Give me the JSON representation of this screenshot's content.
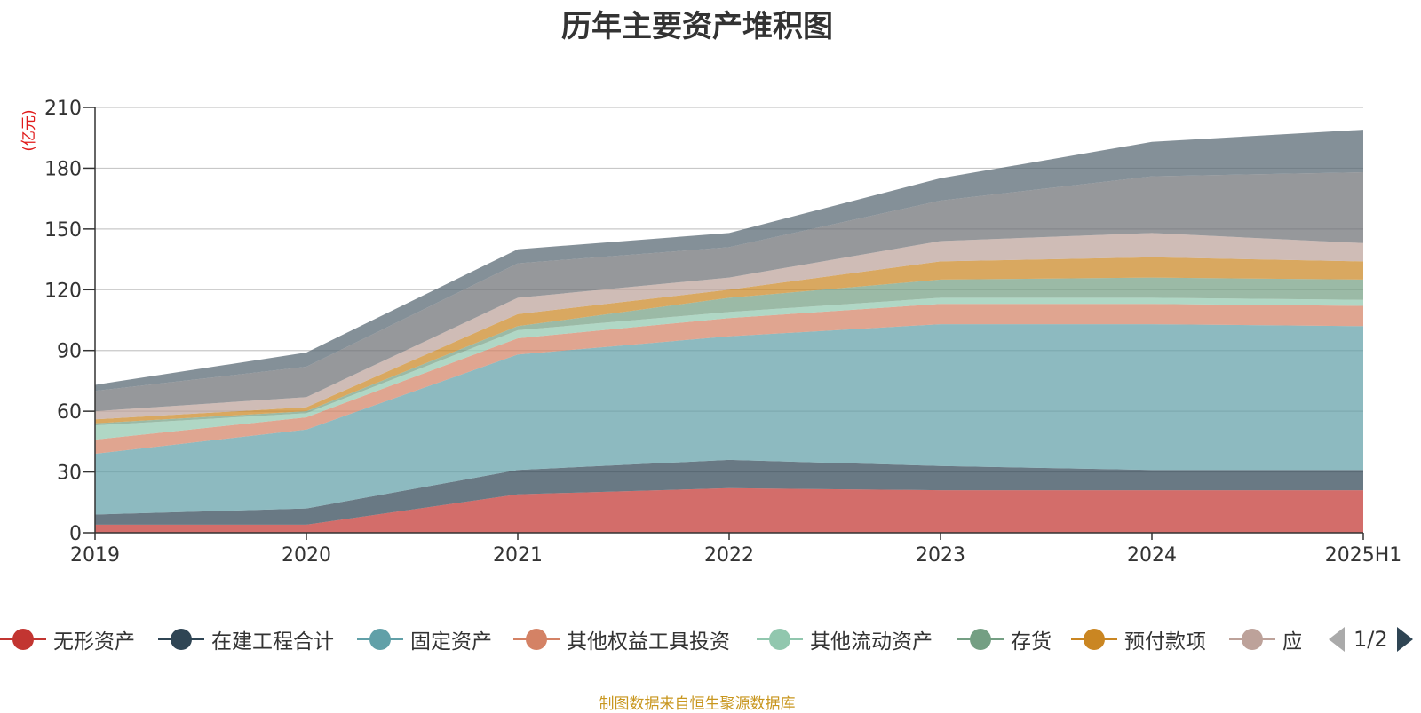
{
  "chart_data": {
    "type": "area",
    "stacked": true,
    "title": "历年主要资产堆积图",
    "unit_label": "(亿元)",
    "source_note": "制图数据来自恒生聚源数据库",
    "categories": [
      "2019",
      "2020",
      "2021",
      "2022",
      "2023",
      "2024",
      "2025H1"
    ],
    "ylim": [
      0,
      210
    ],
    "yticks": [
      0,
      30,
      60,
      90,
      120,
      150,
      180,
      210
    ],
    "grid": true,
    "legend_position": "bottom",
    "legend_page": "1/2",
    "series": [
      {
        "name": "无形资产",
        "color": "#c23531",
        "values": [
          4,
          4,
          19,
          22,
          21,
          21,
          21
        ]
      },
      {
        "name": "在建工程合计",
        "color": "#2f4554",
        "values": [
          5,
          8,
          12,
          14,
          12,
          10,
          10
        ]
      },
      {
        "name": "固定资产",
        "color": "#61a0a8",
        "values": [
          30,
          39,
          57,
          61,
          70,
          72,
          71
        ]
      },
      {
        "name": "其他权益工具投资",
        "color": "#d48265",
        "values": [
          7,
          6,
          8,
          9,
          10,
          10,
          10
        ]
      },
      {
        "name": "其他流动资产",
        "color": "#91c7ae",
        "values": [
          7,
          2,
          4,
          3,
          3,
          3,
          3
        ]
      },
      {
        "name": "存货",
        "color": "#749f83",
        "values": [
          1,
          1,
          2,
          7,
          9,
          10,
          10
        ]
      },
      {
        "name": "预付款项",
        "color": "#ca8622",
        "values": [
          2,
          2,
          6,
          4,
          9,
          10,
          9
        ]
      },
      {
        "name": "应收账款",
        "color": "#bda29a",
        "values": [
          4,
          5,
          8,
          6,
          10,
          12,
          9
        ]
      },
      {
        "name": "",
        "color": "#6e7074",
        "values": [
          10,
          15,
          17,
          15,
          20,
          28,
          35
        ]
      },
      {
        "name": "",
        "color": "#546570",
        "values": [
          3,
          7,
          7,
          7,
          11,
          17,
          21
        ]
      }
    ]
  }
}
